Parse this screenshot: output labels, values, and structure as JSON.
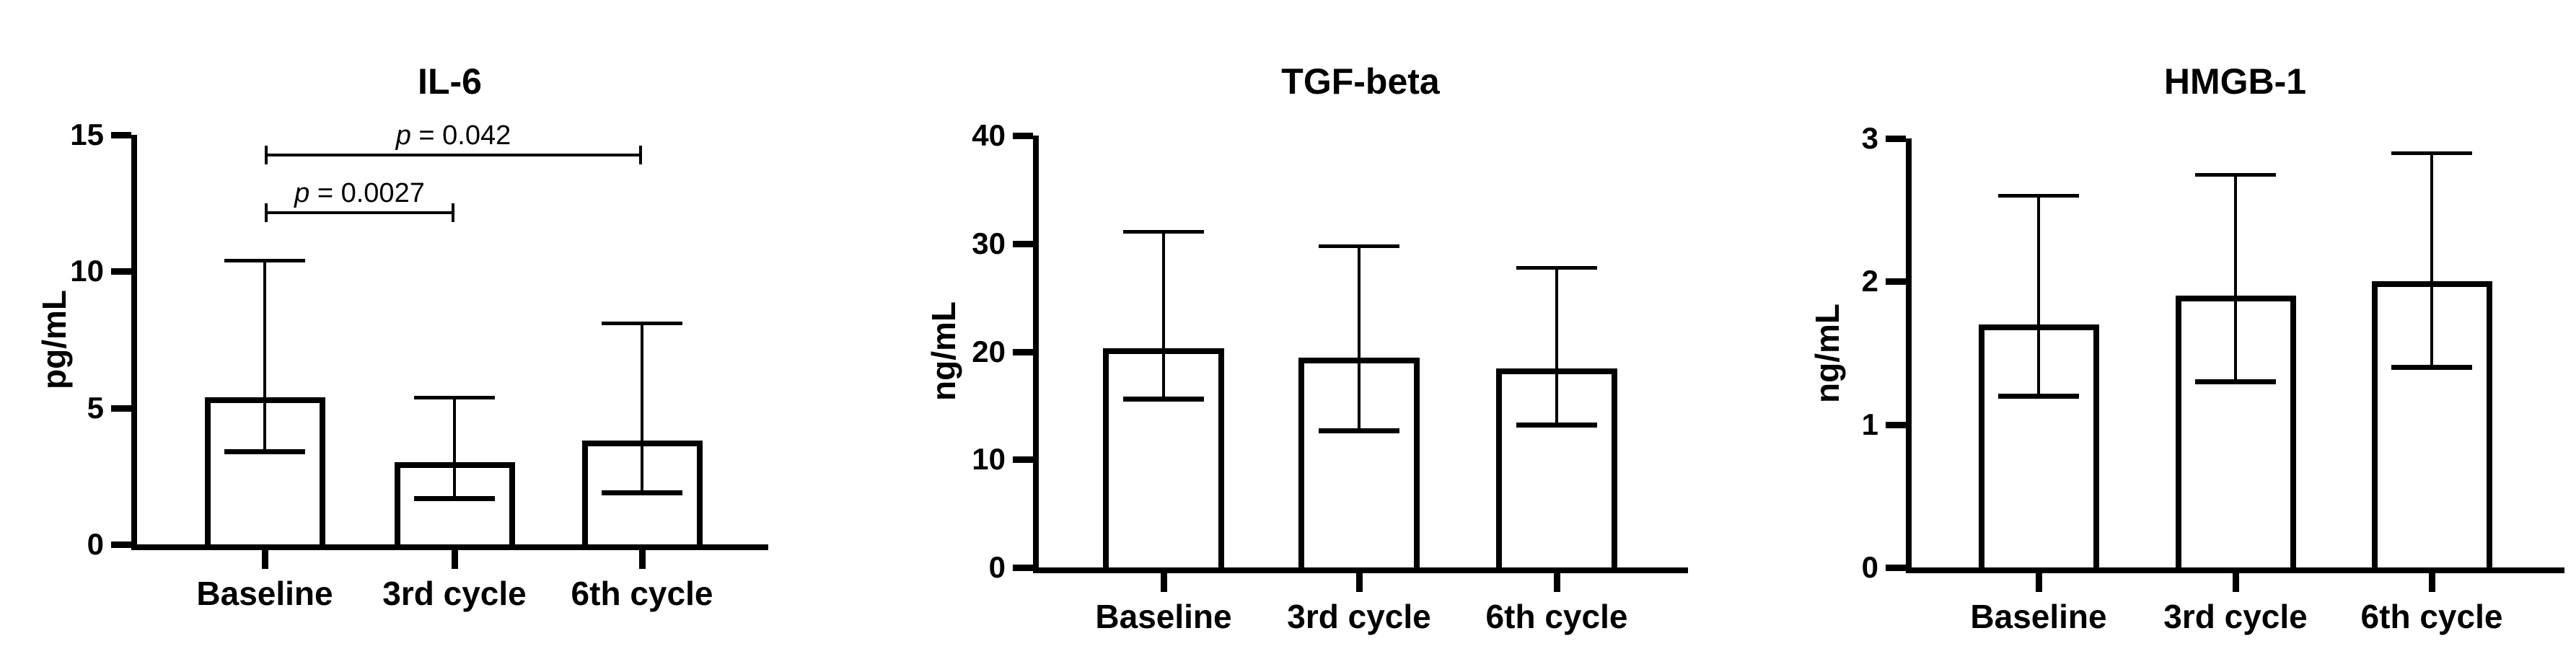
{
  "figure": {
    "background_color": "#ffffff",
    "ink_color": "#000000",
    "bar_fill_color": "#ffffff"
  },
  "chart_data": [
    {
      "type": "bar",
      "title": "IL-6",
      "ylabel": "pg/mL",
      "xlabel": "",
      "categories": [
        "Baseline",
        "3rd cycle",
        "6th cycle"
      ],
      "values": [
        5.4,
        3.0,
        3.8
      ],
      "error_low": [
        3.4,
        1.7,
        1.9
      ],
      "error_high": [
        10.4,
        5.4,
        8.1
      ],
      "ylim": [
        0,
        15
      ],
      "yticks": [
        0,
        5,
        10,
        15
      ],
      "grid": "off",
      "legend": "none",
      "bar_fill": "#ffffff",
      "bar_border": "#000000",
      "significance_brackets": [
        {
          "p_text": "p = 0.0027",
          "from_category": "Baseline",
          "to_category": "3rd cycle",
          "height": 12.15
        },
        {
          "p_text": "p = 0.042",
          "from_category": "Baseline",
          "to_category": "6th cycle",
          "height": 14.25
        }
      ]
    },
    {
      "type": "bar",
      "title": "TGF-beta",
      "ylabel": "ng/mL",
      "xlabel": "",
      "categories": [
        "Baseline",
        "3rd cycle",
        "6th cycle"
      ],
      "values": [
        20.3,
        19.4,
        18.4
      ],
      "error_low": [
        15.6,
        12.7,
        13.2
      ],
      "error_high": [
        31.1,
        29.8,
        27.8
      ],
      "ylim": [
        0,
        40
      ],
      "yticks": [
        0,
        10,
        20,
        30,
        40
      ],
      "grid": "off",
      "legend": "none",
      "bar_fill": "#ffffff",
      "bar_border": "#000000",
      "significance_brackets": []
    },
    {
      "type": "bar",
      "title": "HMGB-1",
      "ylabel": "ng/mL",
      "xlabel": "",
      "categories": [
        "Baseline",
        "3rd cycle",
        "6th cycle"
      ],
      "values": [
        1.7,
        1.9,
        2.0
      ],
      "error_low": [
        1.2,
        1.3,
        1.4
      ],
      "error_high": [
        2.6,
        2.75,
        2.9
      ],
      "ylim": [
        0,
        3
      ],
      "yticks": [
        0,
        1,
        2,
        3
      ],
      "grid": "off",
      "legend": "none",
      "bar_fill": "#ffffff",
      "bar_border": "#000000",
      "significance_brackets": []
    }
  ]
}
